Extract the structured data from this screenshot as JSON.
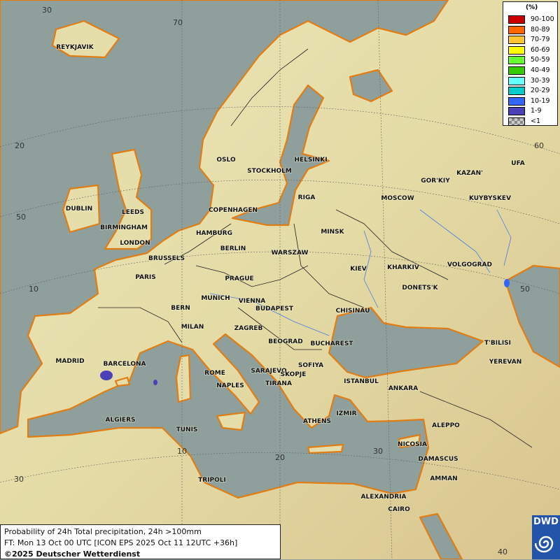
{
  "map": {
    "colors": {
      "sea": "#8e9f9c",
      "land": "#e6deaa",
      "coast": "#e07d14",
      "border": "#222222",
      "river": "#4a7be0",
      "precip_1_9": "#4b40b8"
    },
    "cities": [
      "REYKJAVIK",
      "OSLO",
      "STOCKHOLM",
      "HELSINKI",
      "DUBLIN",
      "LEEDS",
      "BIRMINGHAM",
      "LONDON",
      "COPENHAGEN",
      "RIGA",
      "HAMBURG",
      "BERLIN",
      "MINSK",
      "MOSCOW",
      "GOR'KIY",
      "KAZAN'",
      "UFA",
      "KUYBYSKEV",
      "BRUSSELS",
      "WARSZAW",
      "KIEV",
      "KHARKIV",
      "VOLGOGRAD",
      "PARIS",
      "PRAGUE",
      "DONETS'K",
      "MUNICH",
      "VIENNA",
      "BERN",
      "BUDAPEST",
      "CHISINAU",
      "MILAN",
      "ZAGREB",
      "BEOGRAD",
      "BUCHAREST",
      "T'BILISI",
      "MADRID",
      "BARCELONA",
      "SARAJEVO",
      "SOFIYA",
      "YEREVAN",
      "ROME",
      "NAPLES",
      "SKOPJE",
      "TIRANA",
      "ISTANBUL",
      "ANKARA",
      "IZMIR",
      "ALGIERS",
      "ATHENS",
      "ALEPPO",
      "TUNIS",
      "NICOSIA",
      "DAMASCUS",
      "TRIPOLI",
      "AMMAN",
      "ALEXANDRIA",
      "CAIRO"
    ],
    "grid_labels": [
      "30",
      "70",
      "20",
      "50",
      "10",
      "30",
      "10",
      "20",
      "30",
      "40",
      "60",
      "50",
      "70"
    ]
  },
  "legend": {
    "title": "(%)",
    "items": [
      {
        "label": "90-100",
        "color": "#cc0000"
      },
      {
        "label": "80-89",
        "color": "#ff6600"
      },
      {
        "label": "70-79",
        "color": "#ffc533"
      },
      {
        "label": "60-69",
        "color": "#ffff00"
      },
      {
        "label": "50-59",
        "color": "#66ff33"
      },
      {
        "label": "40-49",
        "color": "#33cc00"
      },
      {
        "label": "30-39",
        "color": "#66ffff"
      },
      {
        "label": "20-29",
        "color": "#00cccc"
      },
      {
        "label": "10-19",
        "color": "#3366ff"
      },
      {
        "label": "1-9",
        "color": "#4b40b8"
      },
      {
        "label": "<1",
        "color": "checker"
      }
    ]
  },
  "info": {
    "line1": "Probability of 24h Total precipitation, 24h >100mm",
    "line2": "FT: Mon 13 Oct 00 UTC [ICON EPS 2025 Oct 11 12UTC +36h]",
    "copyright": "©2025 Deutscher Wetterdienst"
  },
  "logo": {
    "text": "DWD"
  }
}
